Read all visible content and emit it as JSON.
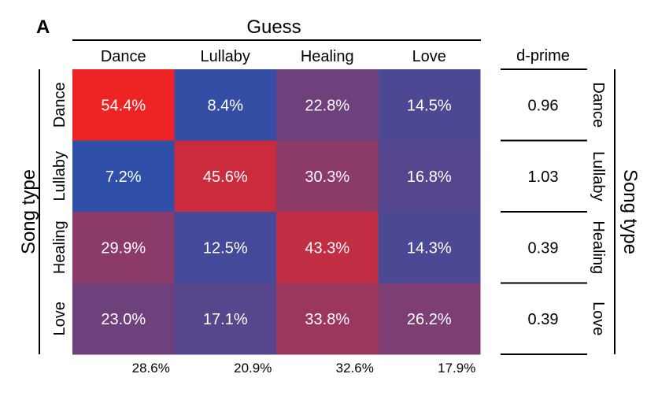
{
  "chart_data": {
    "type": "heatmap",
    "panel_label": "A",
    "x_title": "Guess",
    "y_title": "Song type",
    "right_title": "Song type",
    "columns": [
      "Dance",
      "Lullaby",
      "Healing",
      "Love"
    ],
    "rows": [
      "Dance",
      "Lullaby",
      "Healing",
      "Love"
    ],
    "values": [
      [
        54.4,
        8.4,
        22.8,
        14.5
      ],
      [
        7.2,
        45.6,
        30.3,
        16.8
      ],
      [
        29.9,
        12.5,
        43.3,
        14.3
      ],
      [
        23.0,
        17.1,
        33.8,
        26.2
      ]
    ],
    "value_labels": [
      [
        "54.4%",
        "8.4%",
        "22.8%",
        "14.5%"
      ],
      [
        "7.2%",
        "45.6%",
        "30.3%",
        "16.8%"
      ],
      [
        "29.9%",
        "12.5%",
        "43.3%",
        "14.3%"
      ],
      [
        "23.0%",
        "17.1%",
        "33.8%",
        "26.2%"
      ]
    ],
    "color_scale": {
      "low": "#2f4fa8",
      "high": "#ee2424",
      "min": 7.2,
      "max": 54.4
    },
    "column_totals": [
      "28.6%",
      "20.9%",
      "32.6%",
      "17.9%"
    ],
    "dprime": {
      "header": "d-prime",
      "values": [
        "0.96",
        "1.03",
        "0.39",
        "0.39"
      ]
    }
  }
}
